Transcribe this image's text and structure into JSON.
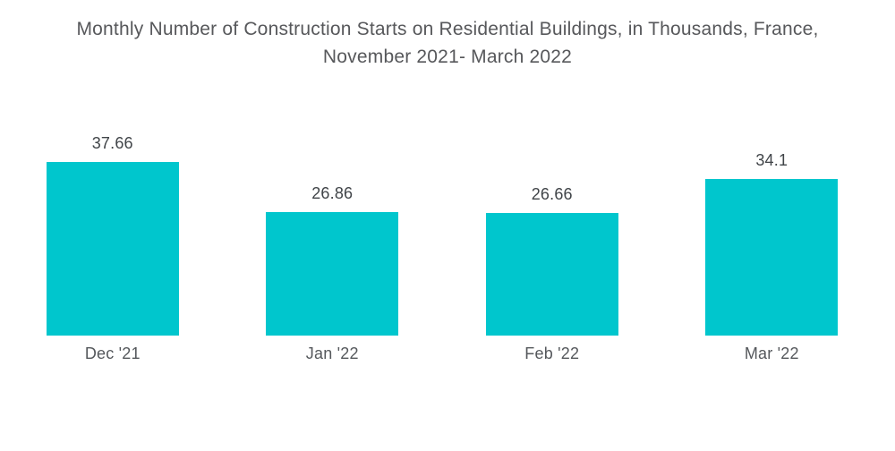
{
  "header": {
    "title_line1": "Monthly Number of Construction Starts on Residential Buildings, in Thousands, France,",
    "title_line2": "November 2021- March 2022"
  },
  "chart_data": {
    "type": "bar",
    "title": "Monthly Number of Construction Starts on Residential Buildings, in Thousands, France, November 2021- March 2022",
    "categories": [
      "Dec '21",
      "Jan '22",
      "Feb '22",
      "Mar '22"
    ],
    "values": [
      37.66,
      26.86,
      26.66,
      34.1
    ],
    "value_labels": [
      "37.66",
      "26.86",
      "26.66",
      "34.1"
    ],
    "xlabel": "",
    "ylabel": "",
    "ylim": [
      0,
      40
    ],
    "grid": false,
    "legend": "none",
    "background_color": "#ffffff",
    "bar_color": "#00c6cd",
    "title_color": "#57585b",
    "value_label_color": "#404448",
    "category_label_color": "#55585c"
  }
}
